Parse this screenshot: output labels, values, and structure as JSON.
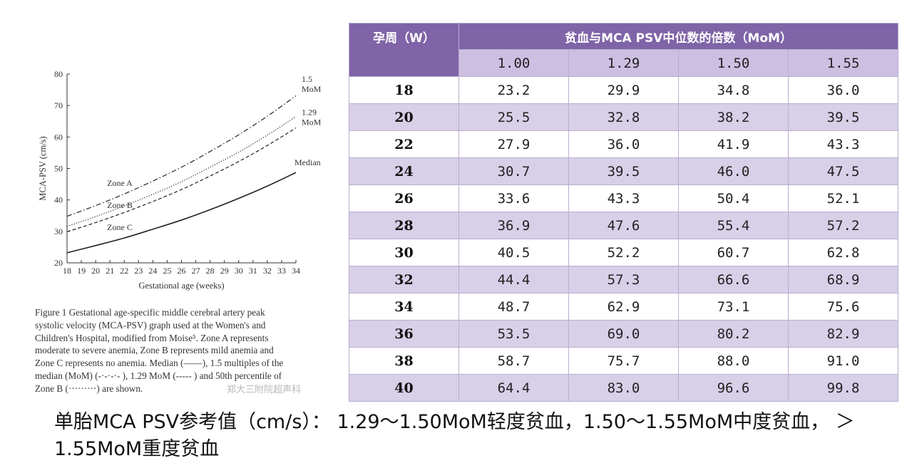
{
  "chart_data": {
    "type": "line",
    "xlabel": "Gestational age (weeks)",
    "ylabel": "MCA-PSV (cm/s)",
    "xlim": [
      18,
      34
    ],
    "ylim": [
      20,
      80
    ],
    "x_ticks": [
      18,
      19,
      20,
      21,
      22,
      23,
      24,
      25,
      26,
      27,
      28,
      29,
      30,
      31,
      32,
      33,
      34
    ],
    "y_ticks": [
      20,
      30,
      40,
      50,
      60,
      70,
      80
    ],
    "grid": false,
    "series": [
      {
        "name": "Median",
        "style": "solid",
        "x": [
          18,
          20,
          22,
          24,
          26,
          28,
          30,
          32,
          34
        ],
        "values": [
          23.2,
          25.5,
          27.9,
          30.7,
          33.6,
          36.9,
          40.5,
          44.4,
          48.7
        ]
      },
      {
        "name": "",
        "style": "dashed",
        "x": [
          18,
          20,
          22,
          24,
          26,
          28,
          30,
          32,
          34
        ],
        "values": [
          29.9,
          32.8,
          36.0,
          39.5,
          43.3,
          47.6,
          52.2,
          57.3,
          62.9
        ]
      },
      {
        "name": "",
        "style": "dotted",
        "x": [
          18,
          20,
          22,
          24,
          26,
          28,
          30,
          32,
          34
        ],
        "values": [
          31.6,
          34.7,
          38.1,
          41.8,
          45.8,
          50.4,
          55.2,
          60.6,
          66.5
        ]
      },
      {
        "name": "",
        "style": "dashdot",
        "x": [
          18,
          20,
          22,
          24,
          26,
          28,
          30,
          32,
          34
        ],
        "values": [
          34.8,
          38.2,
          41.9,
          46.0,
          50.4,
          55.4,
          60.7,
          66.6,
          73.1
        ]
      }
    ],
    "annotations": [
      {
        "text": "1.5",
        "x": 34.4,
        "y": 77.5
      },
      {
        "text": "MoM",
        "x": 34.4,
        "y": 74.3
      },
      {
        "text": "1.29",
        "x": 34.4,
        "y": 67
      },
      {
        "text": "MoM",
        "x": 34.4,
        "y": 63.8
      },
      {
        "text": "Median",
        "x": 33.9,
        "y": 51
      },
      {
        "text": "Zone A",
        "x": 20.8,
        "y": 44.4
      },
      {
        "text": "Zone B",
        "x": 20.8,
        "y": 37.4
      },
      {
        "text": "Zone C",
        "x": 20.8,
        "y": 30.4
      }
    ]
  },
  "caption": {
    "lines": [
      "Figure 1 Gestational age-specific middle cerebral artery peak",
      "systolic velocity (MCA-PSV) graph used at the Women's and",
      "Children's Hospital, modified from Moise⁵. Zone A represents",
      "moderate to severe anemia, Zone B represents mild anemia and",
      "Zone C represents no anemia. Median (——), 1.5 multiples of the",
      "median (MoM) (-·-·-·- ), 1.29 MoM (----- ) and 50th percentile of",
      "Zone B (·········) are shown."
    ]
  },
  "watermark": "郑大三附院超声科",
  "table": {
    "week_header": "孕周（W）",
    "mom_header": "贫血与MCA PSV中位数的倍数（MoM）",
    "mom_values": [
      "1.00",
      "1.29",
      "1.50",
      "1.55"
    ],
    "rows": [
      {
        "week": "18",
        "values": [
          "23.2",
          "29.9",
          "34.8",
          "36.0"
        ]
      },
      {
        "week": "20",
        "values": [
          "25.5",
          "32.8",
          "38.2",
          "39.5"
        ]
      },
      {
        "week": "22",
        "values": [
          "27.9",
          "36.0",
          "41.9",
          "43.3"
        ]
      },
      {
        "week": "24",
        "values": [
          "30.7",
          "39.5",
          "46.0",
          "47.5"
        ]
      },
      {
        "week": "26",
        "values": [
          "33.6",
          "43.3",
          "50.4",
          "52.1"
        ]
      },
      {
        "week": "28",
        "values": [
          "36.9",
          "47.6",
          "55.4",
          "57.2"
        ]
      },
      {
        "week": "30",
        "values": [
          "40.5",
          "52.2",
          "60.7",
          "62.8"
        ]
      },
      {
        "week": "32",
        "values": [
          "44.4",
          "57.3",
          "66.6",
          "68.9"
        ]
      },
      {
        "week": "34",
        "values": [
          "48.7",
          "62.9",
          "73.1",
          "75.6"
        ]
      },
      {
        "week": "36",
        "values": [
          "53.5",
          "69.0",
          "80.2",
          "82.9"
        ]
      },
      {
        "week": "38",
        "values": [
          "58.7",
          "75.7",
          "88.0",
          "91.0"
        ]
      },
      {
        "week": "40",
        "values": [
          "64.4",
          "83.0",
          "96.6",
          "99.8"
        ]
      }
    ]
  },
  "footnote": "单胎MCA PSV参考值（cm/s）： 1.29～1.50MoM轻度贫血，1.50～1.55MoM中度贫血， ＞1.55MoM重度贫血"
}
